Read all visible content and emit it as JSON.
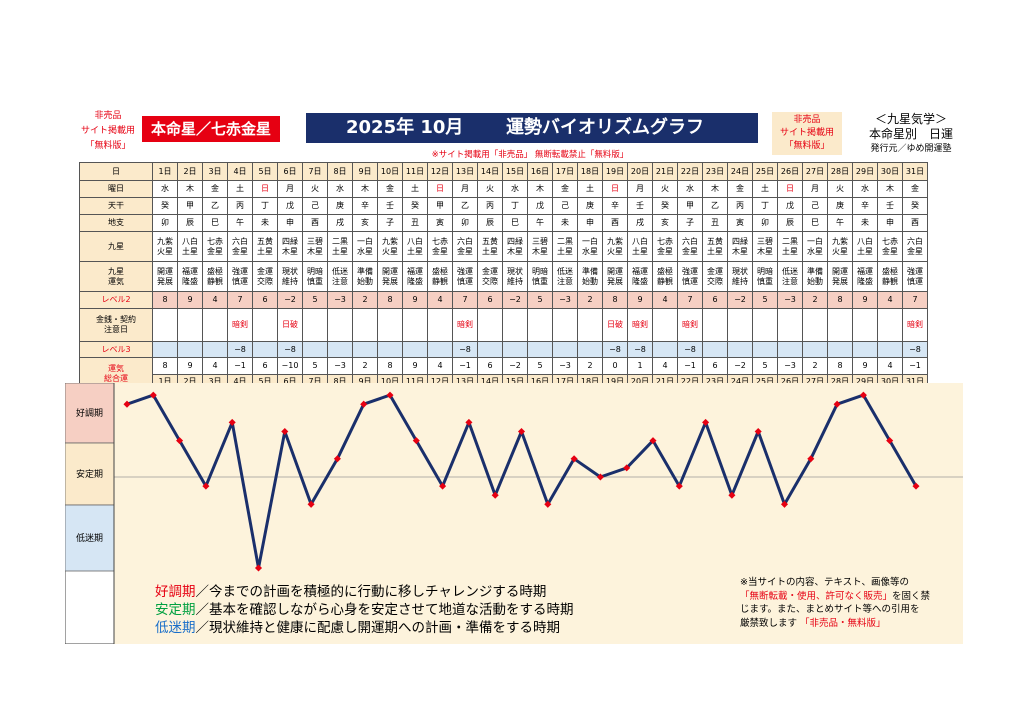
{
  "header": {
    "left_note": [
      "非売品",
      "サイト掲載用",
      "「無料版」"
    ],
    "star_box": "本命星／七赤金星",
    "year_month": "2025年 10月",
    "title": "運勢バイオリズムグラフ",
    "right_note": [
      "非売品",
      "サイト掲載用",
      "「無料版」"
    ],
    "right_title": "＜九星気学＞",
    "right_sub": "本命星別　日運",
    "publisher": "発行元／ゆめ開運塾",
    "notice": "※サイト掲載用「非売品」 無断転載禁止「無料版」"
  },
  "row_labels": {
    "date": "日",
    "weekday": "曜日",
    "stem": "天干",
    "branch": "地支",
    "star": "九星",
    "fortune": "九星\n運気",
    "level2": "レベル2",
    "caution": "金銭・契約\n注意日",
    "level3": "レベル3",
    "total": "運気\n総合運"
  },
  "days": [
    {
      "d": "1日",
      "w": "水",
      "s": "癸",
      "b": "卯",
      "star": "九紫\n火星",
      "f": "開運\n発展",
      "l2": "8",
      "c": "",
      "l3": "",
      "t": "8"
    },
    {
      "d": "2日",
      "w": "木",
      "s": "甲",
      "b": "辰",
      "star": "八白\n土星",
      "f": "福運\n隆盛",
      "l2": "9",
      "c": "",
      "l3": "",
      "t": "9"
    },
    {
      "d": "3日",
      "w": "金",
      "s": "乙",
      "b": "巳",
      "star": "七赤\n金星",
      "f": "盛極\n静観",
      "l2": "4",
      "c": "",
      "l3": "",
      "t": "4"
    },
    {
      "d": "4日",
      "w": "土",
      "s": "丙",
      "b": "午",
      "star": "六白\n金星",
      "f": "強運\n慎運",
      "l2": "7",
      "c": "暗剣",
      "l3": "−8",
      "t": "−1"
    },
    {
      "d": "5日",
      "w": "日",
      "s": "丁",
      "b": "未",
      "star": "五黄\n土星",
      "f": "金運\n交際",
      "l2": "6",
      "c": "",
      "l3": "",
      "t": "6"
    },
    {
      "d": "6日",
      "w": "月",
      "s": "戊",
      "b": "申",
      "star": "四緑\n木星",
      "f": "現状\n維持",
      "l2": "−2",
      "c": "日破",
      "l3": "−8",
      "t": "−10"
    },
    {
      "d": "7日",
      "w": "火",
      "s": "己",
      "b": "酉",
      "star": "三碧\n木星",
      "f": "明暗\n慎重",
      "l2": "5",
      "c": "",
      "l3": "",
      "t": "5"
    },
    {
      "d": "8日",
      "w": "水",
      "s": "庚",
      "b": "戌",
      "star": "二黒\n土星",
      "f": "低迷\n注意",
      "l2": "−3",
      "c": "",
      "l3": "",
      "t": "−3"
    },
    {
      "d": "9日",
      "w": "木",
      "s": "辛",
      "b": "亥",
      "star": "一白\n水星",
      "f": "準備\n始動",
      "l2": "2",
      "c": "",
      "l3": "",
      "t": "2"
    },
    {
      "d": "10日",
      "w": "金",
      "s": "壬",
      "b": "子",
      "star": "九紫\n火星",
      "f": "開運\n発展",
      "l2": "8",
      "c": "",
      "l3": "",
      "t": "8"
    },
    {
      "d": "11日",
      "w": "土",
      "s": "癸",
      "b": "丑",
      "star": "八白\n土星",
      "f": "福運\n隆盛",
      "l2": "9",
      "c": "",
      "l3": "",
      "t": "9"
    },
    {
      "d": "12日",
      "w": "日",
      "s": "甲",
      "b": "寅",
      "star": "七赤\n金星",
      "f": "盛極\n静観",
      "l2": "4",
      "c": "",
      "l3": "",
      "t": "4"
    },
    {
      "d": "13日",
      "w": "月",
      "s": "乙",
      "b": "卯",
      "star": "六白\n金星",
      "f": "強運\n慎運",
      "l2": "7",
      "c": "暗剣",
      "l3": "−8",
      "t": "−1"
    },
    {
      "d": "14日",
      "w": "火",
      "s": "丙",
      "b": "辰",
      "star": "五黄\n土星",
      "f": "金運\n交際",
      "l2": "6",
      "c": "",
      "l3": "",
      "t": "6"
    },
    {
      "d": "15日",
      "w": "水",
      "s": "丁",
      "b": "巳",
      "star": "四緑\n木星",
      "f": "現状\n維持",
      "l2": "−2",
      "c": "",
      "l3": "",
      "t": "−2"
    },
    {
      "d": "16日",
      "w": "木",
      "s": "戊",
      "b": "午",
      "star": "三碧\n木星",
      "f": "明暗\n慎重",
      "l2": "5",
      "c": "",
      "l3": "",
      "t": "5"
    },
    {
      "d": "17日",
      "w": "金",
      "s": "己",
      "b": "未",
      "star": "二黒\n土星",
      "f": "低迷\n注意",
      "l2": "−3",
      "c": "",
      "l3": "",
      "t": "−3"
    },
    {
      "d": "18日",
      "w": "土",
      "s": "庚",
      "b": "申",
      "star": "一白\n水星",
      "f": "準備\n始動",
      "l2": "2",
      "c": "",
      "l3": "",
      "t": "2"
    },
    {
      "d": "19日",
      "w": "日",
      "s": "辛",
      "b": "酉",
      "star": "九紫\n火星",
      "f": "開運\n発展",
      "l2": "8",
      "c": "日破",
      "l3": "−8",
      "t": "0"
    },
    {
      "d": "20日",
      "w": "月",
      "s": "壬",
      "b": "戌",
      "star": "八白\n土星",
      "f": "福運\n隆盛",
      "l2": "9",
      "c": "暗剣",
      "l3": "−8",
      "t": "1"
    },
    {
      "d": "21日",
      "w": "火",
      "s": "癸",
      "b": "亥",
      "star": "七赤\n金星",
      "f": "盛極\n静観",
      "l2": "4",
      "c": "",
      "l3": "",
      "t": "4"
    },
    {
      "d": "22日",
      "w": "水",
      "s": "甲",
      "b": "子",
      "star": "六白\n金星",
      "f": "強運\n慎運",
      "l2": "7",
      "c": "暗剣",
      "l3": "−8",
      "t": "−1"
    },
    {
      "d": "23日",
      "w": "木",
      "s": "乙",
      "b": "丑",
      "star": "五黄\n土星",
      "f": "金運\n交際",
      "l2": "6",
      "c": "",
      "l3": "",
      "t": "6"
    },
    {
      "d": "24日",
      "w": "金",
      "s": "丙",
      "b": "寅",
      "star": "四緑\n木星",
      "f": "現状\n維持",
      "l2": "−2",
      "c": "",
      "l3": "",
      "t": "−2"
    },
    {
      "d": "25日",
      "w": "土",
      "s": "丁",
      "b": "卯",
      "star": "三碧\n木星",
      "f": "明暗\n慎重",
      "l2": "5",
      "c": "",
      "l3": "",
      "t": "5"
    },
    {
      "d": "26日",
      "w": "日",
      "s": "戊",
      "b": "辰",
      "star": "二黒\n土星",
      "f": "低迷\n注意",
      "l2": "−3",
      "c": "",
      "l3": "",
      "t": "−3"
    },
    {
      "d": "27日",
      "w": "月",
      "s": "己",
      "b": "巳",
      "star": "一白\n水星",
      "f": "準備\n始動",
      "l2": "2",
      "c": "",
      "l3": "",
      "t": "2"
    },
    {
      "d": "28日",
      "w": "火",
      "s": "庚",
      "b": "午",
      "star": "九紫\n火星",
      "f": "開運\n発展",
      "l2": "8",
      "c": "",
      "l3": "",
      "t": "8"
    },
    {
      "d": "29日",
      "w": "水",
      "s": "辛",
      "b": "未",
      "star": "八白\n土星",
      "f": "福運\n隆盛",
      "l2": "9",
      "c": "",
      "l3": "",
      "t": "9"
    },
    {
      "d": "30日",
      "w": "木",
      "s": "壬",
      "b": "申",
      "star": "七赤\n金星",
      "f": "盛極\n静観",
      "l2": "4",
      "c": "",
      "l3": "",
      "t": "4"
    },
    {
      "d": "31日",
      "w": "金",
      "s": "癸",
      "b": "酉",
      "star": "六白\n金星",
      "f": "強運\n慎運",
      "l2": "7",
      "c": "暗剣",
      "l3": "−8",
      "t": "−1"
    }
  ],
  "chart_data": {
    "type": "line",
    "x": [
      "1日",
      "2日",
      "3日",
      "4日",
      "5日",
      "6日",
      "7日",
      "8日",
      "9日",
      "10日",
      "11日",
      "12日",
      "13日",
      "14日",
      "15日",
      "16日",
      "17日",
      "18日",
      "19日",
      "20日",
      "21日",
      "22日",
      "23日",
      "24日",
      "25日",
      "26日",
      "27日",
      "28日",
      "29日",
      "30日",
      "31日"
    ],
    "values": [
      8,
      9,
      4,
      -1,
      6,
      -10,
      5,
      -3,
      2,
      8,
      9,
      4,
      -1,
      6,
      -2,
      5,
      -3,
      2,
      0,
      1,
      4,
      -1,
      6,
      -2,
      5,
      -3,
      2,
      8,
      9,
      4,
      -1
    ],
    "ylim": [
      -10,
      10
    ],
    "band_labels": [
      "好調期",
      "安定期",
      "低迷期"
    ],
    "band_colors": [
      "#f6cfc3",
      "#fbeacb",
      "#d6e6f4"
    ],
    "line_color": "#1a2f6b",
    "marker_color": "#e60012",
    "plot_background": "#fdf3dc"
  },
  "legend": {
    "good_label": "好調期",
    "good_text": "／今までの計画を積極的に行動に移しチャレンジする時期",
    "stable_label": "安定期",
    "stable_text": "／基本を確認しながら心身を安定させて地道な活動をする時期",
    "low_label": "低迷期",
    "low_text": "／現状維持と健康に配慮し開運期への計画・準備をする時期"
  },
  "copyright": {
    "line1": "※当サイトの内容、テキスト、画像等の",
    "line2_red": "「無断転載・使用、許可なく販売」",
    "line2_rest": "を固く禁",
    "line3": "じます。また、まとめサイト等への引用を",
    "line4": "厳禁致します",
    "line4_red": "「非売品・無料版」"
  }
}
